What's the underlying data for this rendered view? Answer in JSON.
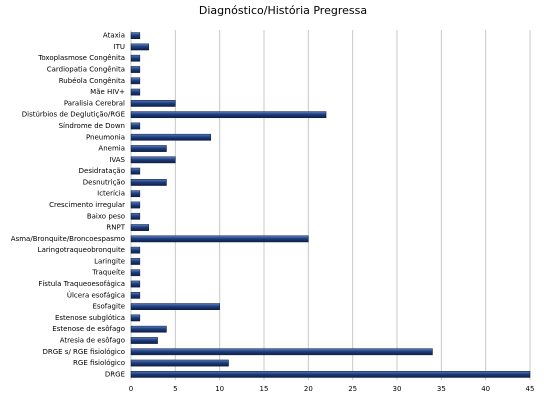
{
  "chart_data": {
    "type": "hbar",
    "title": "Diagnóstico/História Pregressa",
    "categories": [
      "Ataxia",
      "ITU",
      "Toxoplasmose Congênita",
      "Cardiopatia Congênita",
      "Rubéola Congênita",
      "Mãe HIV+",
      "Paralisia Cerebral",
      "Distúrbios de Deglutição/RGE",
      "Síndrome de Down",
      "Pneumonia",
      "Anemia",
      "IVAS",
      "Desidratação",
      "Desnutrição",
      "Icterícia",
      "Crescimento irregular",
      "Baixo peso",
      "RNPT",
      "Asma/Bronquite/Broncoespasmo",
      "Laringotraqueobronquite",
      "Laringite",
      "Traqueíte",
      "Fístula Traqueoesofágica",
      "Úlcera esofágica",
      "Esofagite",
      "Estenose subglótica",
      "Estenose de esôfago",
      "Atresia de esôfago",
      "DRGE s/ RGE fisiológico",
      "RGE fisiológico",
      "DRGE"
    ],
    "values": [
      1,
      2,
      1,
      1,
      1,
      1,
      5,
      22,
      1,
      9,
      4,
      5,
      1,
      4,
      1,
      1,
      1,
      2,
      20,
      1,
      1,
      1,
      1,
      1,
      10,
      1,
      4,
      3,
      34,
      11,
      45
    ],
    "color": "#1f3f7f",
    "xlim": [
      0,
      45
    ],
    "xticks": [
      0,
      5,
      10,
      15,
      20,
      25,
      30,
      35,
      40,
      45
    ],
    "grid": true
  }
}
